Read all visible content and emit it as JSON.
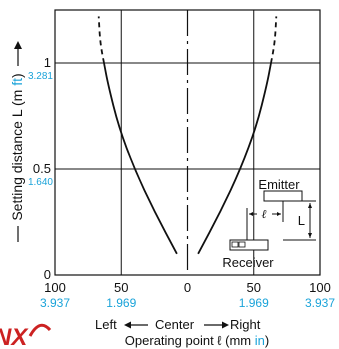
{
  "chart_data": {
    "type": "line",
    "ylabel": "Setting distance L (m ft)",
    "ylabel_unit_blue": "ft",
    "xlabel": "Operating point ℓ (mm in)",
    "xlabel_unit_blue": "in",
    "direction": {
      "left": "Left",
      "center": "Center",
      "right": "Right"
    },
    "xlim": [
      100,
      0,
      100
    ],
    "ylim": [
      0,
      1.25
    ],
    "x_ticks": [
      {
        "pos": -100,
        "mm": "100",
        "in": "3.937"
      },
      {
        "pos": -50,
        "mm": "50",
        "in": "1.969"
      },
      {
        "pos": 0,
        "mm": "0",
        "in": ""
      },
      {
        "pos": 50,
        "mm": "50",
        "in": "1.969"
      },
      {
        "pos": 100,
        "mm": "100",
        "in": "3.937"
      }
    ],
    "y_ticks": [
      {
        "value": 0,
        "m": "0",
        "ft": ""
      },
      {
        "value": 0.5,
        "m": "0.5",
        "ft": "1.640"
      },
      {
        "value": 1,
        "m": "1",
        "ft": "3.281"
      }
    ],
    "grid": true,
    "series": [
      {
        "side": "left",
        "points": [
          [
            -8,
            0.1
          ],
          [
            -25,
            0.3
          ],
          [
            -40,
            0.5
          ],
          [
            -52,
            0.7
          ],
          [
            -60,
            0.9
          ],
          [
            -63,
            1.0
          ]
        ],
        "dashed_points": [
          [
            -63,
            1.0
          ],
          [
            -66,
            1.1
          ],
          [
            -67,
            1.22
          ]
        ]
      },
      {
        "side": "right",
        "points": [
          [
            8,
            0.1
          ],
          [
            25,
            0.3
          ],
          [
            40,
            0.5
          ],
          [
            52,
            0.7
          ],
          [
            60,
            0.9
          ],
          [
            63,
            1.0
          ]
        ],
        "dashed_points": [
          [
            63,
            1.0
          ],
          [
            66,
            1.1
          ],
          [
            67,
            1.22
          ]
        ]
      }
    ],
    "inset": {
      "emitter": "Emitter",
      "receiver": "Receiver",
      "l_symbol": "ℓ",
      "L_symbol": "L"
    },
    "colors": {
      "line": "#111111",
      "blue": "#1aa3d9",
      "logo": "#cc2222"
    }
  }
}
